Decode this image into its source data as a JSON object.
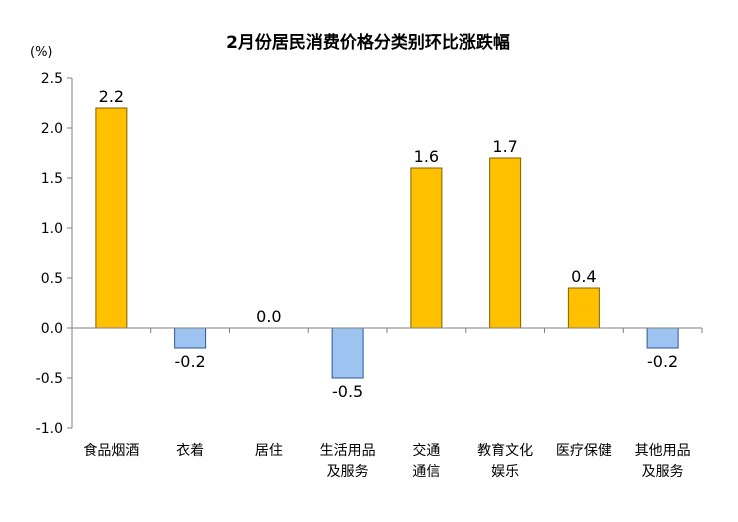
{
  "chart_data": {
    "type": "bar",
    "title": "2月份居民消费价格分类别环比涨跌幅",
    "unit_label": "(%)",
    "ylim": [
      -1.0,
      2.5
    ],
    "yticks": [
      "2.5",
      "2.0",
      "1.5",
      "1.0",
      "0.5",
      "0.0",
      "-0.5",
      "-1.0"
    ],
    "ytick_values": [
      2.5,
      2.0,
      1.5,
      1.0,
      0.5,
      0.0,
      -0.5,
      -1.0
    ],
    "grid": false,
    "categories": [
      [
        "食品烟酒"
      ],
      [
        "衣着"
      ],
      [
        "居住"
      ],
      [
        "生活用品",
        "及服务"
      ],
      [
        "交通",
        "通信"
      ],
      [
        "教育文化",
        "娱乐"
      ],
      [
        "医疗保健"
      ],
      [
        "其他用品",
        "及服务"
      ]
    ],
    "values": [
      2.2,
      -0.2,
      0.0,
      -0.5,
      1.6,
      1.7,
      0.4,
      -0.2
    ],
    "data_labels": [
      "2.2",
      "-0.2",
      "0.0",
      "-0.5",
      "1.6",
      "1.7",
      "0.4",
      "-0.2"
    ],
    "colors": {
      "positive_fill": "#FFC000",
      "positive_stroke": "#7F6000",
      "negative_fill": "#9DC3F0",
      "negative_stroke": "#2F5597",
      "axis": "#808080"
    }
  }
}
